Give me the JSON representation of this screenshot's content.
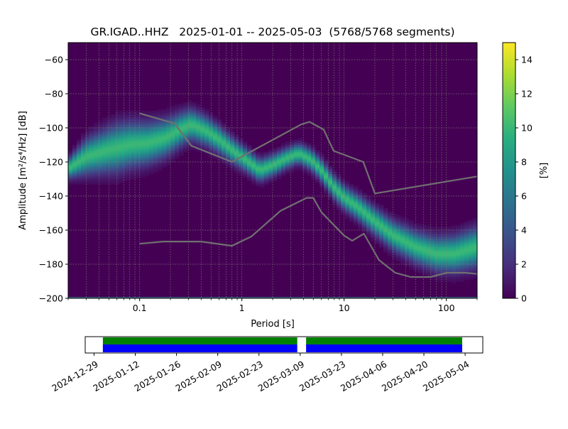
{
  "chart_data": {
    "type": "heatmap",
    "title": "GR.IGAD..HHZ   2025-01-01 -- 2025-05-03  (5768/5768 segments)",
    "xlabel": "Period [s]",
    "ylabel": "Amplitude [m²/s⁴/Hz] [dB]",
    "xscale": "log",
    "xlim": [
      0.02,
      200
    ],
    "ylim": [
      -200,
      -50
    ],
    "xticks": [
      {
        "label": "0.1",
        "value": 0.1
      },
      {
        "label": "1",
        "value": 1
      },
      {
        "label": "10",
        "value": 10
      },
      {
        "label": "100",
        "value": 100
      }
    ],
    "yticks": [
      {
        "label": "−60",
        "value": -60
      },
      {
        "label": "−80",
        "value": -80
      },
      {
        "label": "−100",
        "value": -100
      },
      {
        "label": "−120",
        "value": -120
      },
      {
        "label": "−140",
        "value": -140
      },
      {
        "label": "−160",
        "value": -160
      },
      {
        "label": "−180",
        "value": -180
      },
      {
        "label": "−200",
        "value": -200
      }
    ],
    "grid": true,
    "colorbar": {
      "label": "[%]",
      "range": [
        0,
        15
      ],
      "colormap": "viridis",
      "ticks": [
        {
          "label": "0",
          "value": 0
        },
        {
          "label": "2",
          "value": 2
        },
        {
          "label": "4",
          "value": 4
        },
        {
          "label": "6",
          "value": 6
        },
        {
          "label": "8",
          "value": 8
        },
        {
          "label": "10",
          "value": 10
        },
        {
          "label": "12",
          "value": 12
        },
        {
          "label": "14",
          "value": 14
        }
      ]
    },
    "mode_curve": [
      {
        "period": 0.02,
        "db": -124
      },
      {
        "period": 0.03,
        "db": -117
      },
      {
        "period": 0.05,
        "db": -113
      },
      {
        "period": 0.08,
        "db": -110
      },
      {
        "period": 0.12,
        "db": -109
      },
      {
        "period": 0.18,
        "db": -106
      },
      {
        "period": 0.25,
        "db": -101
      },
      {
        "period": 0.32,
        "db": -98
      },
      {
        "period": 0.45,
        "db": -102
      },
      {
        "period": 0.6,
        "db": -107
      },
      {
        "period": 0.8,
        "db": -113
      },
      {
        "period": 1.1,
        "db": -119
      },
      {
        "period": 1.5,
        "db": -125
      },
      {
        "period": 2.0,
        "db": -122
      },
      {
        "period": 2.7,
        "db": -118
      },
      {
        "period": 3.6,
        "db": -115
      },
      {
        "period": 4.8,
        "db": -119
      },
      {
        "period": 6.0,
        "db": -125
      },
      {
        "period": 8.0,
        "db": -135
      },
      {
        "period": 10,
        "db": -141
      },
      {
        "period": 14,
        "db": -147
      },
      {
        "period": 20,
        "db": -155
      },
      {
        "period": 30,
        "db": -163
      },
      {
        "period": 50,
        "db": -170
      },
      {
        "period": 80,
        "db": -174
      },
      {
        "period": 120,
        "db": -174
      },
      {
        "period": 200,
        "db": -170
      }
    ],
    "band_halfwidth_db": [
      {
        "period": 0.02,
        "db": 5
      },
      {
        "period": 0.03,
        "db": 9
      },
      {
        "period": 0.06,
        "db": 12
      },
      {
        "period": 0.15,
        "db": 10
      },
      {
        "period": 0.3,
        "db": 8
      },
      {
        "period": 1.0,
        "db": 6
      },
      {
        "period": 3.5,
        "db": 5
      },
      {
        "period": 10,
        "db": 6
      },
      {
        "period": 50,
        "db": 8
      },
      {
        "period": 200,
        "db": 10
      }
    ],
    "noise_models": [
      {
        "name": "high",
        "points": [
          {
            "period": 0.1,
            "db": -91.5
          },
          {
            "period": 0.22,
            "db": -97.4
          },
          {
            "period": 0.32,
            "db": -110.5
          },
          {
            "period": 0.8,
            "db": -120
          },
          {
            "period": 3.8,
            "db": -98
          },
          {
            "period": 4.6,
            "db": -96.5
          },
          {
            "period": 6.3,
            "db": -101
          },
          {
            "period": 7.9,
            "db": -113.5
          },
          {
            "period": 15.4,
            "db": -120
          },
          {
            "period": 20,
            "db": -138.5
          },
          {
            "period": 200,
            "db": -128.5
          }
        ]
      },
      {
        "name": "low",
        "points": [
          {
            "period": 0.1,
            "db": -168
          },
          {
            "period": 0.17,
            "db": -166.7
          },
          {
            "period": 0.4,
            "db": -166.7
          },
          {
            "period": 0.8,
            "db": -169.2
          },
          {
            "period": 1.24,
            "db": -163.7
          },
          {
            "period": 2.4,
            "db": -148.6
          },
          {
            "period": 4.3,
            "db": -141.1
          },
          {
            "period": 5.0,
            "db": -141.1
          },
          {
            "period": 6.0,
            "db": -149.5
          },
          {
            "period": 10,
            "db": -163.2
          },
          {
            "period": 12,
            "db": -166.2
          },
          {
            "period": 15.6,
            "db": -162.1
          },
          {
            "period": 21.9,
            "db": -177.5
          },
          {
            "period": 31.6,
            "db": -185
          },
          {
            "period": 45,
            "db": -187.5
          },
          {
            "period": 70,
            "db": -187.5
          },
          {
            "period": 101,
            "db": -185
          },
          {
            "period": 154,
            "db": -185
          },
          {
            "period": 200,
            "db": -185.7
          }
        ]
      }
    ],
    "timeline": {
      "xlim": [
        "2024-12-26",
        "2025-05-10"
      ],
      "tick_labels": [
        "2024-12-29",
        "2025-01-12",
        "2025-01-26",
        "2025-02-09",
        "2025-02-23",
        "2025-03-09",
        "2025-03-23",
        "2025-04-06",
        "2025-04-20",
        "2025-05-04"
      ],
      "coverage": [
        {
          "start": "2025-01-01",
          "end": "2025-03-08"
        },
        {
          "start": "2025-03-11",
          "end": "2025-05-03"
        }
      ],
      "coverage_colors": {
        "top": "#008000",
        "bottom": "#0000ff"
      }
    }
  }
}
